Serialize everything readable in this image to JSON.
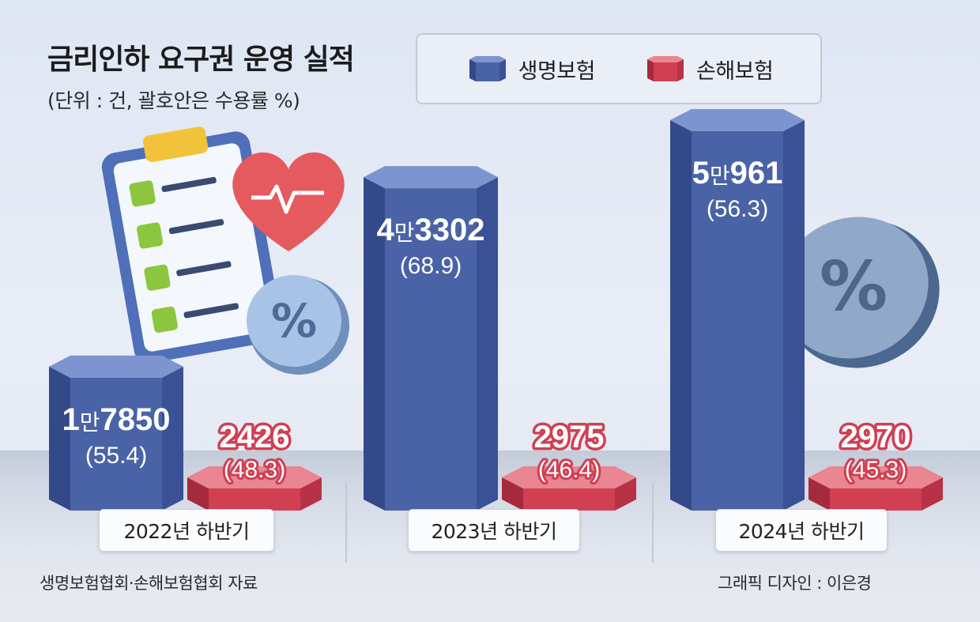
{
  "title": "금리인하 요구권 운영 실적",
  "subtitle": "(단위 : 건, 괄호안은 수용률 %)",
  "legend": {
    "life": "생명보험",
    "nonlife": "손해보험"
  },
  "colors": {
    "life": "#4a63a6",
    "nonlife": "#d03f52"
  },
  "chart_data": {
    "type": "bar",
    "categories": [
      "2022년 하반기",
      "2023년 하반기",
      "2024년 하반기"
    ],
    "series": [
      {
        "name": "생명보험",
        "values": [
          17850,
          43302,
          50961
        ],
        "rates": [
          55.4,
          68.9,
          56.3
        ],
        "value_labels": [
          [
            "1",
            "만",
            "7850"
          ],
          [
            "4",
            "만",
            "3302"
          ],
          [
            "5",
            "만",
            "961"
          ]
        ],
        "rate_labels": [
          "(55.4)",
          "(68.9)",
          "(56.3)"
        ]
      },
      {
        "name": "손해보험",
        "values": [
          2426,
          2975,
          2970
        ],
        "rates": [
          48.3,
          46.4,
          45.3
        ],
        "value_labels": [
          [
            "",
            "",
            "2426"
          ],
          [
            "",
            "",
            "2975"
          ],
          [
            "",
            "",
            "2970"
          ]
        ],
        "rate_labels": [
          "(48.3)",
          "(46.4)",
          "(45.3)"
        ]
      }
    ]
  },
  "footer": {
    "source": "생명보험협회·손해보험협회 자료",
    "credit": "그래픽 디자인 : 이은경"
  }
}
